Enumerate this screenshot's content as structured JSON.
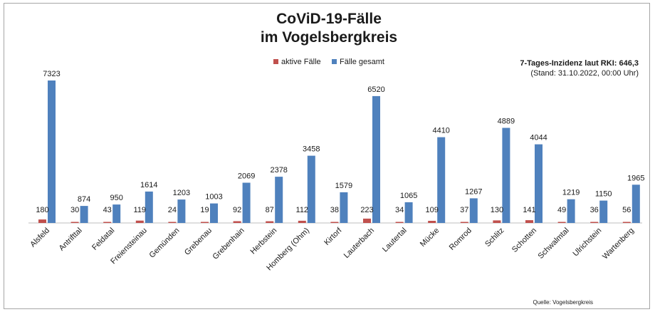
{
  "chart_data": {
    "type": "bar",
    "title_line1": "CoViD-19-Fälle",
    "title_line2": "im Vogelsbergkreis",
    "categories": [
      "Alsfeld",
      "Antrifttal",
      "Feldatal",
      "Freiensteinau",
      "Gemünden",
      "Grebenau",
      "Grebenhain",
      "Herbstein",
      "Homberg (Ohm)",
      "Kirtorf",
      "Lauterbach",
      "Lautertal",
      "Mücke",
      "Romrod",
      "Schlitz",
      "Schotten",
      "Schwalmtal",
      "Ulrichstein",
      "Wartenberg"
    ],
    "series": [
      {
        "name": "aktive Fälle",
        "color": "#c0504d",
        "values": [
          180,
          30,
          43,
          119,
          24,
          19,
          92,
          87,
          112,
          38,
          223,
          34,
          109,
          37,
          130,
          141,
          49,
          36,
          56
        ]
      },
      {
        "name": "Fälle gesamt",
        "color": "#4f81bd",
        "values": [
          7323,
          874,
          950,
          1614,
          1203,
          1003,
          2069,
          2378,
          3458,
          1579,
          6520,
          1065,
          4410,
          1267,
          4889,
          4044,
          1219,
          1150,
          1965
        ]
      }
    ],
    "ylim": [
      0,
      7323
    ],
    "grid": false,
    "legend_position": "top-center",
    "data_labels": true
  },
  "annotations": {
    "incidence": "7-Tages-Inzidenz laut RKI: 646,3",
    "stand": "(Stand: 31.10.2022, 00:00 Uhr)",
    "source": "Quelle: Vogelsbergkreis"
  }
}
